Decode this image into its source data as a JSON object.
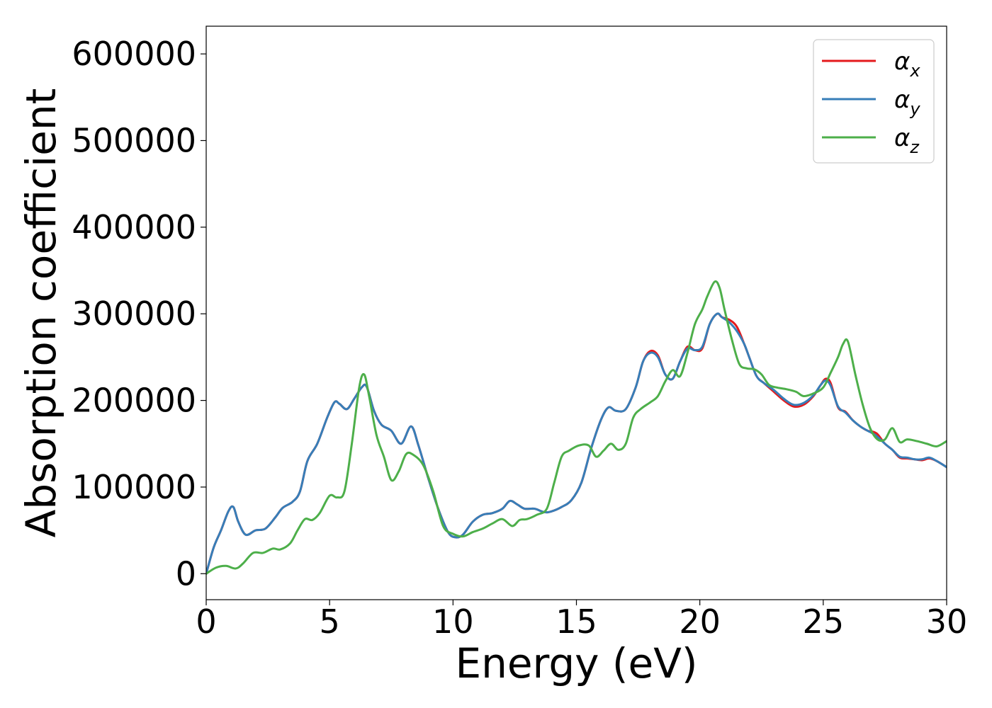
{
  "chart_data": {
    "type": "line",
    "title": "",
    "xlabel": "Energy (eV)",
    "ylabel": "Absorption coefficient",
    "xlim": [
      0,
      30
    ],
    "ylim": [
      -30000,
      632000
    ],
    "xticks": [
      0,
      5,
      10,
      15,
      20,
      25,
      30
    ],
    "xtick_labels": [
      "0",
      "5",
      "10",
      "15",
      "20",
      "25",
      "30"
    ],
    "yticks": [
      0,
      100000,
      200000,
      300000,
      400000,
      500000,
      600000
    ],
    "ytick_labels": [
      "0",
      "100000",
      "200000",
      "300000",
      "400000",
      "500000",
      "600000"
    ],
    "grid": false,
    "legend_position": "top-right",
    "series": [
      {
        "name": "α_x",
        "legend_base": "α",
        "legend_sub": "x",
        "color": "#e41a1c",
        "x": [
          0,
          0.3,
          0.6,
          0.9,
          1.1,
          1.3,
          1.6,
          2.0,
          2.4,
          2.8,
          3.1,
          3.5,
          3.8,
          4.1,
          4.5,
          4.9,
          5.2,
          5.4,
          5.7,
          6.0,
          6.3,
          6.5,
          6.8,
          7.1,
          7.5,
          7.9,
          8.3,
          8.6,
          9.0,
          9.4,
          9.8,
          10.1,
          10.4,
          10.8,
          11.2,
          11.6,
          12.0,
          12.3,
          12.6,
          12.9,
          13.3,
          13.7,
          14.0,
          14.4,
          14.8,
          15.2,
          15.6,
          16.0,
          16.3,
          16.6,
          17.0,
          17.4,
          17.7,
          18.0,
          18.3,
          18.6,
          18.9,
          19.2,
          19.5,
          19.8,
          20.1,
          20.4,
          20.7,
          20.9,
          21.2,
          21.5,
          21.8,
          22.0,
          22.3,
          22.6,
          23.0,
          23.4,
          23.8,
          24.2,
          24.6,
          24.9,
          25.1,
          25.3,
          25.6,
          25.9,
          26.2,
          26.5,
          26.8,
          27.0,
          27.2,
          27.5,
          27.8,
          28.1,
          28.4,
          28.7,
          29.0,
          29.3,
          29.6,
          30.0
        ],
        "y": [
          0,
          30000,
          50000,
          72000,
          77000,
          60000,
          45000,
          50000,
          52000,
          65000,
          76000,
          83000,
          95000,
          130000,
          150000,
          180000,
          198000,
          196000,
          190000,
          202000,
          215000,
          216000,
          188000,
          172000,
          165000,
          150000,
          170000,
          148000,
          110000,
          75000,
          48000,
          42000,
          45000,
          60000,
          68000,
          70000,
          75000,
          84000,
          80000,
          75000,
          75000,
          71000,
          72000,
          77000,
          85000,
          105000,
          145000,
          178000,
          192000,
          188000,
          190000,
          215000,
          245000,
          257000,
          252000,
          230000,
          225000,
          245000,
          262000,
          258000,
          260000,
          288000,
          300000,
          296000,
          293000,
          285000,
          265000,
          250000,
          228000,
          220000,
          210000,
          200000,
          193000,
          195000,
          205000,
          218000,
          225000,
          220000,
          192000,
          187000,
          177000,
          170000,
          165000,
          164000,
          161000,
          150000,
          143000,
          134000,
          133000,
          132000,
          131000,
          133000,
          130000,
          123000
        ]
      },
      {
        "name": "α_y",
        "legend_base": "α",
        "legend_sub": "y",
        "color": "#377eb8",
        "x": [
          0,
          0.3,
          0.6,
          0.9,
          1.1,
          1.3,
          1.6,
          2.0,
          2.4,
          2.8,
          3.1,
          3.5,
          3.8,
          4.1,
          4.5,
          4.9,
          5.2,
          5.4,
          5.7,
          6.0,
          6.3,
          6.5,
          6.8,
          7.1,
          7.5,
          7.9,
          8.3,
          8.6,
          9.0,
          9.4,
          9.8,
          10.1,
          10.4,
          10.8,
          11.2,
          11.6,
          12.0,
          12.3,
          12.6,
          12.9,
          13.3,
          13.7,
          14.0,
          14.4,
          14.8,
          15.2,
          15.6,
          16.0,
          16.3,
          16.6,
          17.0,
          17.4,
          17.7,
          18.0,
          18.3,
          18.6,
          18.9,
          19.2,
          19.5,
          19.8,
          20.1,
          20.4,
          20.7,
          20.9,
          21.2,
          21.5,
          21.8,
          22.0,
          22.3,
          22.6,
          23.0,
          23.4,
          23.8,
          24.2,
          24.6,
          24.9,
          25.1,
          25.3,
          25.6,
          25.9,
          26.2,
          26.5,
          26.8,
          27.0,
          27.2,
          27.5,
          27.8,
          28.1,
          28.4,
          28.7,
          29.0,
          29.3,
          29.6,
          30.0
        ],
        "y": [
          0,
          30000,
          50000,
          72000,
          77000,
          60000,
          45000,
          50000,
          52000,
          65000,
          76000,
          83000,
          95000,
          130000,
          150000,
          180000,
          198000,
          196000,
          190000,
          202000,
          215000,
          216000,
          188000,
          172000,
          165000,
          150000,
          170000,
          148000,
          110000,
          75000,
          48000,
          42000,
          45000,
          60000,
          68000,
          70000,
          75000,
          84000,
          80000,
          75000,
          75000,
          71000,
          72000,
          77000,
          85000,
          105000,
          145000,
          178000,
          192000,
          188000,
          190000,
          215000,
          245000,
          255000,
          250000,
          230000,
          225000,
          245000,
          260000,
          258000,
          262000,
          288000,
          300000,
          296000,
          290000,
          280000,
          265000,
          250000,
          228000,
          220000,
          212000,
          202000,
          195000,
          197000,
          206000,
          218000,
          223000,
          217000,
          193000,
          186000,
          177000,
          170000,
          165000,
          162000,
          158000,
          150000,
          143000,
          135000,
          134000,
          132000,
          132000,
          134000,
          130000,
          123000
        ]
      },
      {
        "name": "α_z",
        "legend_base": "α",
        "legend_sub": "z",
        "color": "#4daf4a",
        "x": [
          0,
          0.4,
          0.8,
          1.2,
          1.5,
          1.9,
          2.3,
          2.7,
          3.0,
          3.4,
          3.7,
          4.0,
          4.3,
          4.6,
          5.0,
          5.3,
          5.6,
          5.9,
          6.2,
          6.4,
          6.6,
          6.9,
          7.2,
          7.5,
          7.8,
          8.1,
          8.4,
          8.8,
          9.2,
          9.6,
          10.0,
          10.4,
          10.8,
          11.2,
          11.6,
          12.0,
          12.4,
          12.7,
          13.0,
          13.4,
          13.8,
          14.1,
          14.4,
          14.7,
          15.1,
          15.5,
          15.8,
          16.1,
          16.4,
          16.7,
          17.0,
          17.3,
          17.6,
          18.0,
          18.3,
          18.6,
          18.9,
          19.2,
          19.5,
          19.8,
          20.1,
          20.3,
          20.6,
          20.8,
          21.0,
          21.3,
          21.6,
          21.9,
          22.2,
          22.5,
          22.8,
          23.1,
          23.5,
          23.9,
          24.2,
          24.6,
          25.0,
          25.3,
          25.6,
          25.8,
          26.0,
          26.3,
          26.6,
          26.9,
          27.2,
          27.5,
          27.8,
          28.1,
          28.4,
          28.8,
          29.2,
          29.6,
          30.0
        ],
        "y": [
          0,
          7000,
          9000,
          6000,
          12000,
          24000,
          24000,
          29000,
          28000,
          35000,
          50000,
          63000,
          62000,
          70000,
          90000,
          88000,
          95000,
          150000,
          215000,
          230000,
          205000,
          160000,
          135000,
          108000,
          118000,
          138000,
          137000,
          125000,
          95000,
          55000,
          46000,
          43000,
          48000,
          52000,
          58000,
          63000,
          55000,
          62000,
          63000,
          68000,
          75000,
          105000,
          135000,
          142000,
          148000,
          148000,
          135000,
          142000,
          150000,
          143000,
          150000,
          180000,
          190000,
          198000,
          205000,
          222000,
          235000,
          228000,
          255000,
          288000,
          305000,
          320000,
          337000,
          330000,
          305000,
          270000,
          242000,
          237000,
          236000,
          230000,
          218000,
          215000,
          213000,
          210000,
          205000,
          208000,
          215000,
          232000,
          250000,
          265000,
          268000,
          230000,
          195000,
          168000,
          155000,
          155000,
          168000,
          152000,
          155000,
          153000,
          150000,
          147000,
          153000
        ]
      }
    ]
  }
}
